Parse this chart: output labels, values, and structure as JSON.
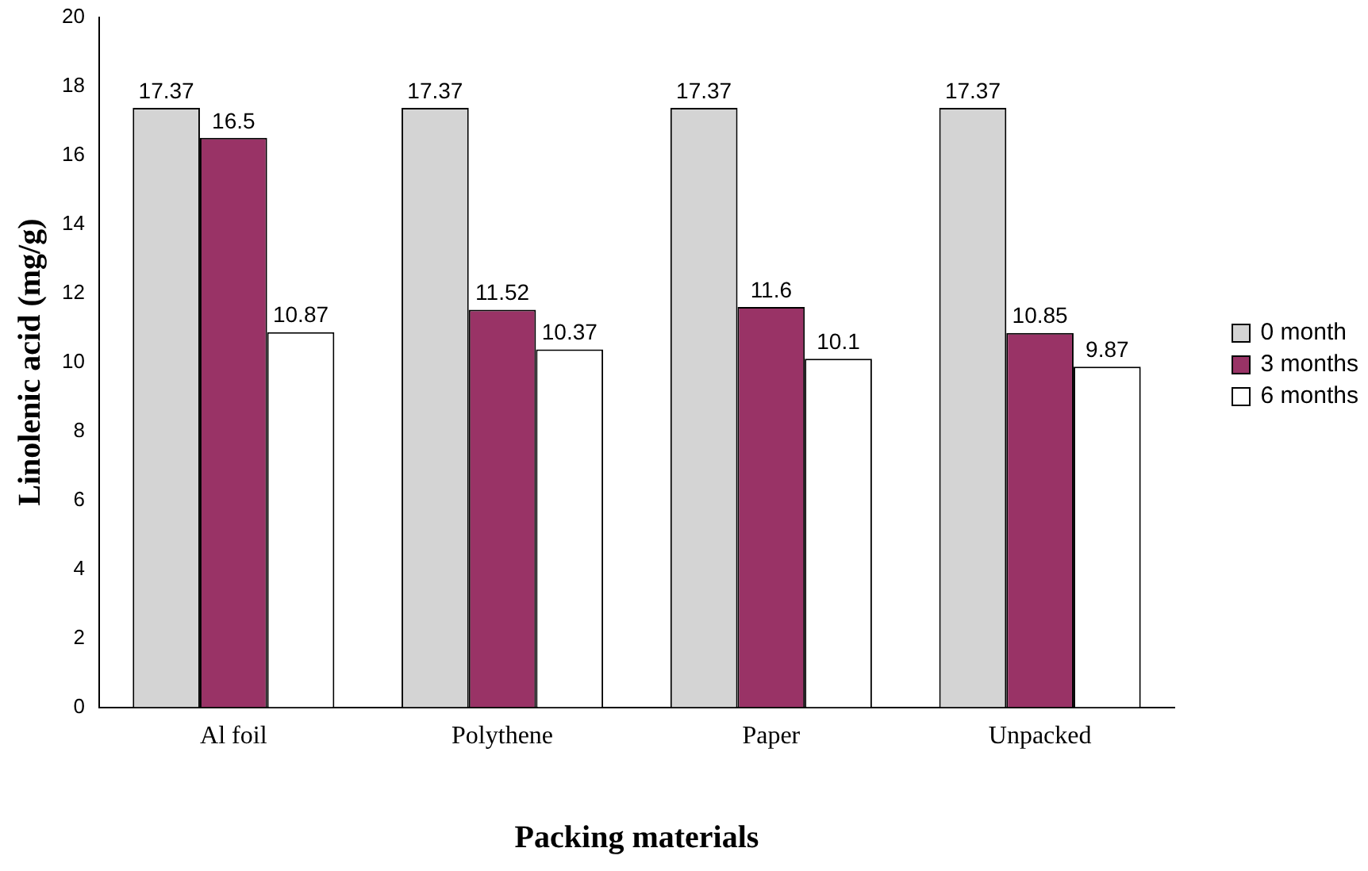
{
  "chart_data": {
    "type": "bar",
    "xlabel": "Packing materials",
    "ylabel": "Linolenic acid (mg/g)",
    "categories": [
      "Al foil",
      "Polythene",
      "Paper",
      "Unpacked"
    ],
    "series": [
      {
        "name": "0 month",
        "color": "#d4d4d4",
        "values": [
          17.37,
          17.37,
          17.37,
          17.37
        ]
      },
      {
        "name": "3 months",
        "color": "#993366",
        "values": [
          16.5,
          11.52,
          11.6,
          10.85
        ]
      },
      {
        "name": "6 months",
        "color": "#ffffff",
        "values": [
          10.87,
          10.37,
          10.1,
          9.87
        ]
      }
    ],
    "ylim": [
      0,
      20
    ],
    "yticks": [
      0,
      2,
      4,
      6,
      8,
      10,
      12,
      14,
      16,
      18,
      20
    ],
    "grid": false,
    "legend": "right",
    "data_labels": true
  }
}
